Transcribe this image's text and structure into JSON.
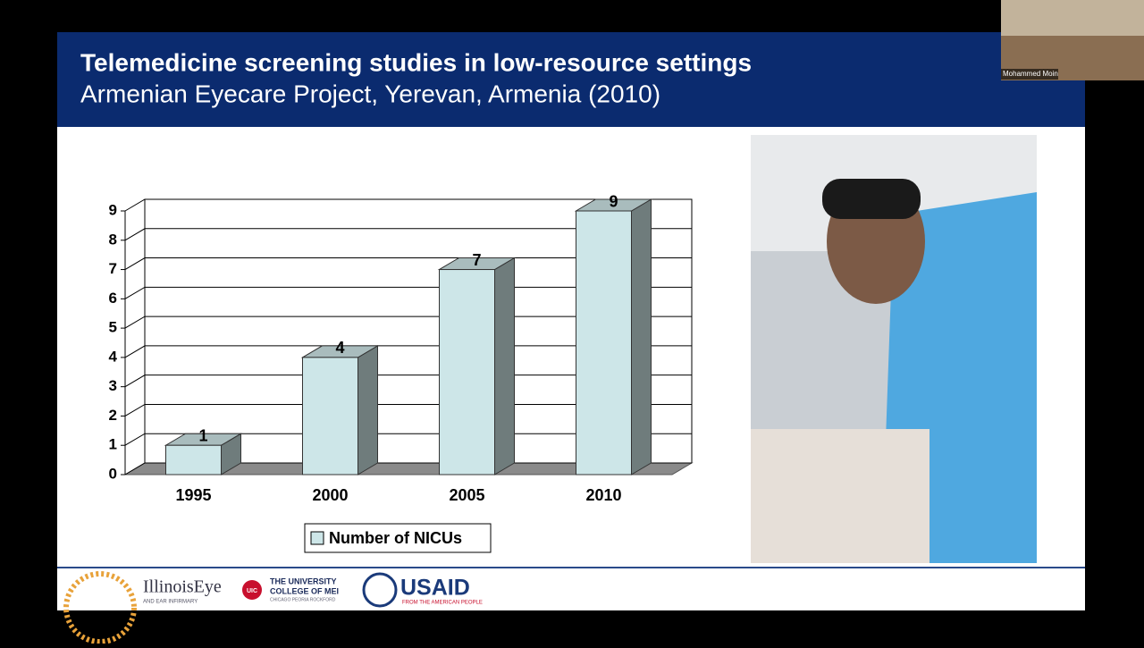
{
  "slide": {
    "title": "Telemedicine screening studies in low-resource settings",
    "subtitle": "Armenian Eyecare Project, Yerevan, Armenia (2010)"
  },
  "chart_data": {
    "type": "bar3d",
    "categories": [
      "1995",
      "2000",
      "2005",
      "2010"
    ],
    "series": [
      {
        "name": "Number of NICUs",
        "color": "#cde6e8",
        "values": [
          1,
          4,
          7,
          9
        ]
      }
    ],
    "ylim": [
      0,
      9
    ],
    "yticks": [
      0,
      1,
      2,
      3,
      4,
      5,
      6,
      7,
      8,
      9
    ],
    "grid": true,
    "legend": "bottom"
  },
  "logos": {
    "illinois": "IllinoisEye",
    "illinois_sub": "AND EAR INFIRMARY",
    "uic": "UIC",
    "university": "THE UNIVERSITY",
    "college": "COLLEGE OF MEI",
    "campuses": "CHICAGO PEORIA ROCKFORD",
    "usaid": "USAID",
    "usaid_sub": "FROM THE AMERICAN PEOPLE"
  },
  "participant": {
    "name": "Mohammed Moin"
  }
}
